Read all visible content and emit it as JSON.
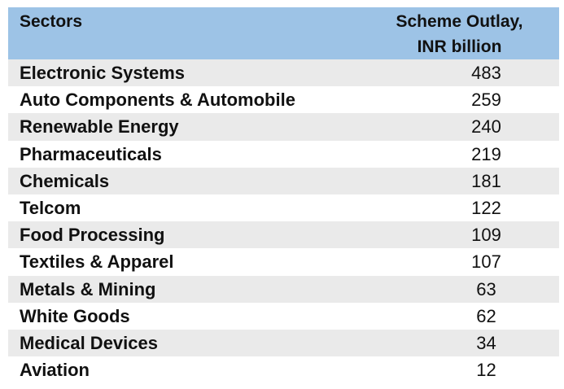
{
  "table": {
    "headers": {
      "sectors": "Sectors",
      "outlay_line1": "Scheme Outlay,",
      "outlay_line2": "INR billion"
    },
    "rows": [
      {
        "sector": "Electronic Systems",
        "outlay": "483"
      },
      {
        "sector": "Auto Components & Automobile",
        "outlay": "259"
      },
      {
        "sector": "Renewable Energy",
        "outlay": "240"
      },
      {
        "sector": "Pharmaceuticals",
        "outlay": "219"
      },
      {
        "sector": "Chemicals",
        "outlay": "181"
      },
      {
        "sector": "Telcom",
        "outlay": "122"
      },
      {
        "sector": "Food Processing",
        "outlay": "109"
      },
      {
        "sector": "Textiles & Apparel",
        "outlay": "107"
      },
      {
        "sector": "Metals & Mining",
        "outlay": "63"
      },
      {
        "sector": "White Goods",
        "outlay": "62"
      },
      {
        "sector": "Medical Devices",
        "outlay": "34"
      },
      {
        "sector": "Aviation",
        "outlay": "12"
      }
    ]
  }
}
